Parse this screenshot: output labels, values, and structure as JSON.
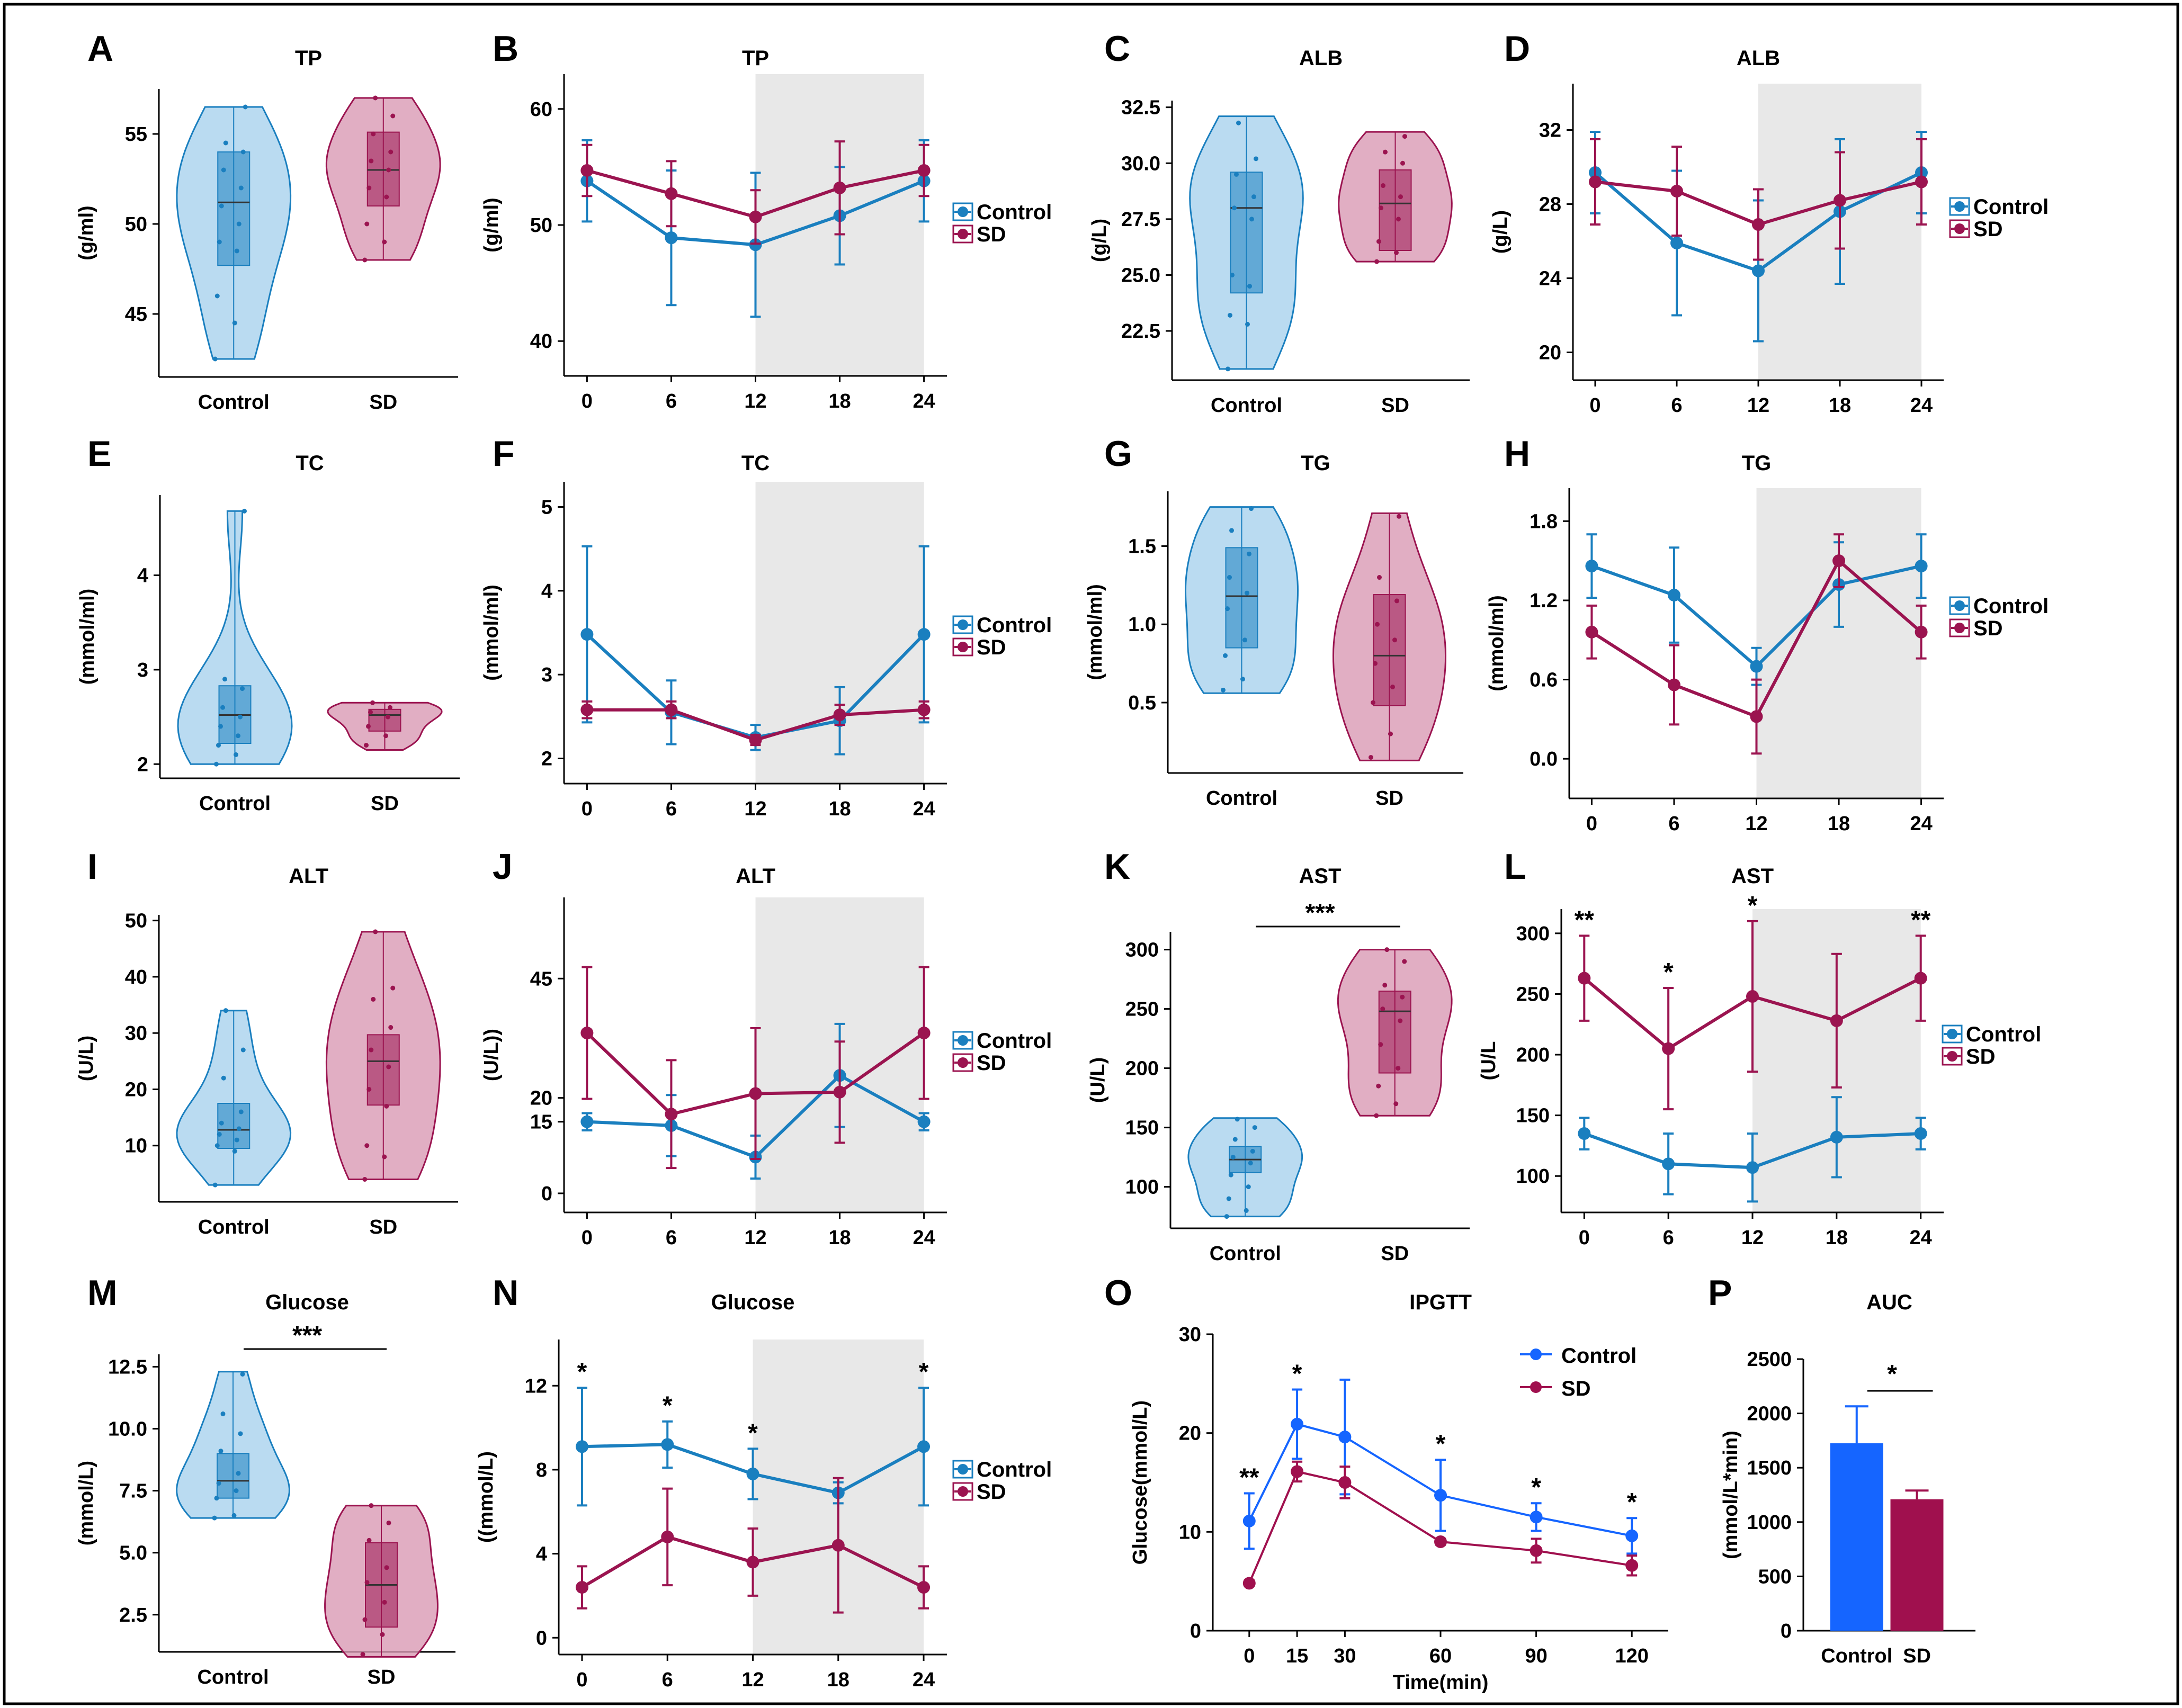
{
  "colors": {
    "control": "#1a7fbf",
    "sd": "#9b1450",
    "control_fill": "#a9d2ee",
    "sd_fill": "#d99ab4",
    "shade": "#e8e8e8",
    "ipgtt_control": "#1565ff",
    "ipgtt_sd": "#a0104e"
  },
  "chart_data": [
    {
      "id": "A",
      "type": "violin",
      "title": "TP",
      "ylabel": "(g/ml)",
      "categories": [
        "Control",
        "SD"
      ],
      "yticks": [
        45,
        50,
        55
      ],
      "ylim": [
        41.5,
        57.5
      ],
      "groups": [
        {
          "min": 42.5,
          "max": 56.5,
          "q1": 47.7,
          "median": 51.2,
          "q3": 54.0,
          "points": [
            42.5,
            44.5,
            46,
            48.5,
            49,
            50,
            51,
            52,
            53,
            54,
            54.5,
            56.5
          ]
        },
        {
          "min": 48,
          "max": 57,
          "q1": 51,
          "median": 53,
          "q3": 55.1,
          "points": [
            48,
            49,
            50,
            51.5,
            52,
            53,
            53.5,
            54,
            55,
            56,
            57
          ]
        }
      ]
    },
    {
      "id": "B",
      "type": "line",
      "title": "TP",
      "ylabel": "(g/ml)",
      "x": [
        0,
        6,
        12,
        18,
        24
      ],
      "yticks": [
        40,
        50,
        60
      ],
      "ylim": [
        37,
        63
      ],
      "shade": [
        12,
        24
      ],
      "series": [
        {
          "name": "Control",
          "values": [
            53.8,
            48.9,
            48.3,
            50.8,
            53.8
          ],
          "err": [
            3.5,
            5.8,
            6.2,
            4.2,
            3.5
          ]
        },
        {
          "name": "SD",
          "values": [
            54.7,
            52.7,
            50.7,
            53.2,
            54.7
          ],
          "err": [
            2.2,
            2.8,
            2.3,
            4.0,
            2.2
          ]
        }
      ]
    },
    {
      "id": "C",
      "type": "violin",
      "title": "ALB",
      "ylabel": "(g/L)",
      "categories": [
        "Control",
        "SD"
      ],
      "yticks": [
        22.5,
        25.0,
        27.5,
        30.0,
        32.5
      ],
      "ylim": [
        20.3,
        32.8
      ],
      "groups": [
        {
          "min": 20.8,
          "max": 32.1,
          "q1": 24.2,
          "median": 28.0,
          "q3": 29.6,
          "points": [
            20.8,
            22.8,
            23.2,
            24.5,
            25,
            27.5,
            28,
            28.5,
            29.5,
            30.2,
            31.8
          ]
        },
        {
          "min": 25.6,
          "max": 31.4,
          "q1": 26.1,
          "median": 28.2,
          "q3": 29.7,
          "points": [
            25.6,
            26,
            26.5,
            27.5,
            28,
            28.5,
            29,
            30,
            30.5,
            31.2
          ]
        }
      ]
    },
    {
      "id": "D",
      "type": "line",
      "title": "ALB",
      "ylabel": "(g/L)",
      "x": [
        0,
        6,
        12,
        18,
        24
      ],
      "yticks": [
        20,
        24,
        28,
        32
      ],
      "ylim": [
        18.5,
        34.5
      ],
      "shade": [
        12,
        24
      ],
      "series": [
        {
          "name": "Control",
          "values": [
            29.7,
            25.9,
            24.4,
            27.6,
            29.7
          ],
          "err": [
            2.2,
            3.9,
            3.8,
            3.9,
            2.2
          ]
        },
        {
          "name": "SD",
          "values": [
            29.2,
            28.7,
            26.9,
            28.2,
            29.2
          ],
          "err": [
            2.3,
            2.4,
            1.9,
            2.6,
            2.3
          ]
        }
      ]
    },
    {
      "id": "E",
      "type": "violin",
      "title": "TC",
      "ylabel": "(mmol/ml)",
      "categories": [
        "Control",
        "SD"
      ],
      "yticks": [
        2,
        3,
        4
      ],
      "ylim": [
        1.85,
        4.85
      ],
      "groups": [
        {
          "min": 2.0,
          "max": 4.68,
          "q1": 2.22,
          "median": 2.52,
          "q3": 2.83,
          "points": [
            2.0,
            2.1,
            2.2,
            2.3,
            2.4,
            2.5,
            2.6,
            2.8,
            2.9,
            4.68
          ]
        },
        {
          "min": 2.15,
          "max": 2.65,
          "q1": 2.35,
          "median": 2.52,
          "q3": 2.58,
          "points": [
            2.2,
            2.3,
            2.4,
            2.5,
            2.55,
            2.6,
            2.65
          ]
        }
      ]
    },
    {
      "id": "F",
      "type": "line",
      "title": "TC",
      "ylabel": "(mmol/ml)",
      "x": [
        0,
        6,
        12,
        18,
        24
      ],
      "yticks": [
        2,
        3,
        4,
        5
      ],
      "ylim": [
        1.7,
        5.3
      ],
      "shade": [
        12,
        24
      ],
      "series": [
        {
          "name": "Control",
          "values": [
            3.48,
            2.55,
            2.25,
            2.45,
            3.48
          ],
          "err": [
            1.05,
            0.38,
            0.15,
            0.4,
            1.05
          ]
        },
        {
          "name": "SD",
          "values": [
            2.58,
            2.58,
            2.22,
            2.52,
            2.58
          ],
          "err": [
            0.1,
            0.1,
            0.06,
            0.12,
            0.1
          ]
        }
      ]
    },
    {
      "id": "G",
      "type": "violin",
      "title": "TG",
      "ylabel": "(mmol/ml)",
      "categories": [
        "Control",
        "SD"
      ],
      "yticks": [
        0.5,
        1.0,
        1.5
      ],
      "ylim": [
        0.05,
        1.85
      ],
      "groups": [
        {
          "min": 0.56,
          "max": 1.75,
          "q1": 0.85,
          "median": 1.18,
          "q3": 1.49,
          "points": [
            0.58,
            0.65,
            0.8,
            0.9,
            1.1,
            1.2,
            1.3,
            1.45,
            1.6,
            1.74
          ]
        },
        {
          "min": 0.13,
          "max": 1.71,
          "q1": 0.48,
          "median": 0.8,
          "q3": 1.19,
          "points": [
            0.15,
            0.3,
            0.5,
            0.6,
            0.75,
            0.9,
            1.0,
            1.15,
            1.3,
            1.69
          ]
        }
      ]
    },
    {
      "id": "H",
      "type": "line",
      "title": "TG",
      "ylabel": "(mmol/ml)",
      "x": [
        0,
        6,
        12,
        18,
        24
      ],
      "yticks": [
        0,
        0.6,
        1.2,
        1.8
      ],
      "ylim": [
        -0.3,
        2.05
      ],
      "shade": [
        12,
        24
      ],
      "series": [
        {
          "name": "Control",
          "values": [
            1.46,
            1.24,
            0.7,
            1.32,
            1.46
          ],
          "err": [
            0.24,
            0.36,
            0.14,
            0.32,
            0.24
          ]
        },
        {
          "name": "SD",
          "values": [
            0.96,
            0.56,
            0.32,
            1.5,
            0.96
          ],
          "err": [
            0.2,
            0.3,
            0.28,
            0.2,
            0.2
          ]
        }
      ]
    },
    {
      "id": "I",
      "type": "violin",
      "title": "ALT",
      "ylabel": "(U/L)",
      "categories": [
        "Control",
        "SD"
      ],
      "yticks": [
        10,
        20,
        30,
        40,
        50
      ],
      "ylim": [
        0,
        51
      ],
      "groups": [
        {
          "min": 3,
          "max": 34,
          "q1": 9.5,
          "median": 12.8,
          "q3": 17.5,
          "points": [
            3,
            9,
            10,
            11,
            12,
            13,
            14,
            16,
            22,
            27,
            34
          ]
        },
        {
          "min": 4,
          "max": 48,
          "q1": 17.2,
          "median": 25,
          "q3": 29.7,
          "points": [
            4,
            8,
            10,
            17,
            20,
            24,
            27,
            31,
            36,
            38,
            48
          ]
        }
      ]
    },
    {
      "id": "J",
      "type": "line",
      "title": "ALT",
      "ylabel": "(U/L))",
      "x": [
        0,
        6,
        12,
        18,
        24
      ],
      "yticks": [
        0,
        15,
        20,
        45
      ],
      "tickLabels": [
        "0",
        "15",
        "20",
        "45"
      ],
      "ylim": [
        -4,
        62
      ],
      "shade": [
        12,
        24
      ],
      "series": [
        {
          "name": "Control",
          "values": [
            15,
            14.2,
            7.6,
            24.7,
            15
          ],
          "err": [
            1.8,
            6.4,
            4.5,
            10.8,
            1.8
          ]
        },
        {
          "name": "SD",
          "values": [
            33.6,
            16.6,
            20.9,
            21.2,
            33.6
          ],
          "err": [
            13.8,
            11.3,
            13.7,
            10.6,
            13.8
          ]
        }
      ]
    },
    {
      "id": "K",
      "type": "violin",
      "title": "AST",
      "ylabel": "(U/L)",
      "categories": [
        "Control",
        "SD"
      ],
      "yticks": [
        100,
        150,
        200,
        250,
        300
      ],
      "ylim": [
        65,
        315
      ],
      "sig": "***",
      "groups": [
        {
          "min": 75,
          "max": 158,
          "q1": 112,
          "median": 123,
          "q3": 134,
          "points": [
            75,
            80,
            90,
            100,
            110,
            120,
            125,
            130,
            140,
            150,
            157
          ]
        },
        {
          "min": 160,
          "max": 300,
          "q1": 196,
          "median": 248,
          "q3": 265,
          "points": [
            160,
            170,
            185,
            200,
            220,
            240,
            250,
            260,
            270,
            290,
            300
          ]
        }
      ]
    },
    {
      "id": "L",
      "type": "line",
      "title": "AST",
      "ylabel": "(U/L",
      "x": [
        0,
        6,
        12,
        18,
        24
      ],
      "yticks": [
        100,
        150,
        200,
        250,
        300
      ],
      "ylim": [
        70,
        320
      ],
      "shade": [
        12,
        24
      ],
      "stars": [
        "**",
        "*",
        "*",
        "",
        "**"
      ],
      "series": [
        {
          "name": "Control",
          "values": [
            135,
            110,
            107,
            132,
            135
          ],
          "err": [
            13,
            25,
            28,
            33,
            13
          ]
        },
        {
          "name": "SD",
          "values": [
            263,
            205,
            248,
            228,
            263
          ],
          "err": [
            35,
            50,
            62,
            55,
            35
          ]
        }
      ]
    },
    {
      "id": "M",
      "type": "violin",
      "title": "Glucose",
      "ylabel": "(mmol/L)",
      "categories": [
        "Control",
        "SD"
      ],
      "yticks": [
        2.5,
        5.0,
        7.5,
        10.0,
        12.5
      ],
      "ylim": [
        1.0,
        13.0
      ],
      "sig": "***",
      "groups": [
        {
          "min": 6.4,
          "max": 12.3,
          "q1": 7.2,
          "median": 7.9,
          "q3": 9.0,
          "points": [
            6.4,
            6.5,
            7.2,
            7.5,
            7.8,
            8.2,
            9.1,
            9.8,
            10.6,
            12.2
          ]
        },
        {
          "min": 0.8,
          "max": 6.9,
          "q1": 2.0,
          "median": 3.7,
          "q3": 5.4,
          "points": [
            0.9,
            1.7,
            2.3,
            3.0,
            3.8,
            4.4,
            5.5,
            6.2,
            6.9
          ]
        }
      ]
    },
    {
      "id": "N",
      "type": "line",
      "title": "Glucose",
      "ylabel": "((mmol/L)",
      "x": [
        0,
        6,
        12,
        18,
        24
      ],
      "yticks": [
        0,
        4,
        8,
        12
      ],
      "ylim": [
        -0.8,
        14.2
      ],
      "shade": [
        12,
        24
      ],
      "stars": [
        "*",
        "*",
        "*",
        "",
        "*"
      ],
      "series": [
        {
          "name": "Control",
          "values": [
            9.1,
            9.2,
            7.8,
            6.9,
            9.1
          ],
          "err": [
            2.8,
            1.1,
            1.2,
            0.5,
            2.8
          ]
        },
        {
          "name": "SD",
          "values": [
            2.4,
            4.8,
            3.6,
            4.4,
            2.4
          ],
          "err": [
            1.0,
            2.3,
            1.6,
            3.2,
            1.0
          ]
        }
      ]
    },
    {
      "id": "O",
      "type": "line",
      "title": "IPGTT",
      "ylabel": "Glucose(mmol/L)",
      "xlabel": "Time(min)",
      "x": [
        0,
        15,
        30,
        60,
        90,
        120
      ],
      "yticks": [
        0,
        10,
        20,
        30
      ],
      "ylim": [
        0,
        30
      ],
      "stars": [
        "**",
        "*",
        "",
        "*",
        "*",
        "*"
      ],
      "series": [
        {
          "name": "Control",
          "values": [
            11.1,
            20.9,
            19.6,
            13.7,
            11.5,
            9.6
          ],
          "err": [
            2.8,
            3.5,
            5.8,
            3.6,
            1.4,
            1.8
          ]
        },
        {
          "name": "SD",
          "values": [
            4.8,
            16.1,
            15.0,
            9.0,
            8.1,
            6.6
          ],
          "err": [
            0.3,
            1.0,
            1.6,
            0.3,
            1.2,
            1.0
          ]
        }
      ]
    },
    {
      "id": "P",
      "type": "bar",
      "title": "AUC",
      "ylabel": "(mmol/L*min)",
      "categories": [
        "Control",
        "SD"
      ],
      "values": [
        1725,
        1210
      ],
      "err": [
        340,
        80
      ],
      "yticks": [
        0,
        500,
        1000,
        1500,
        2000,
        2500
      ],
      "ylim": [
        0,
        2500
      ],
      "sig": "*"
    }
  ]
}
